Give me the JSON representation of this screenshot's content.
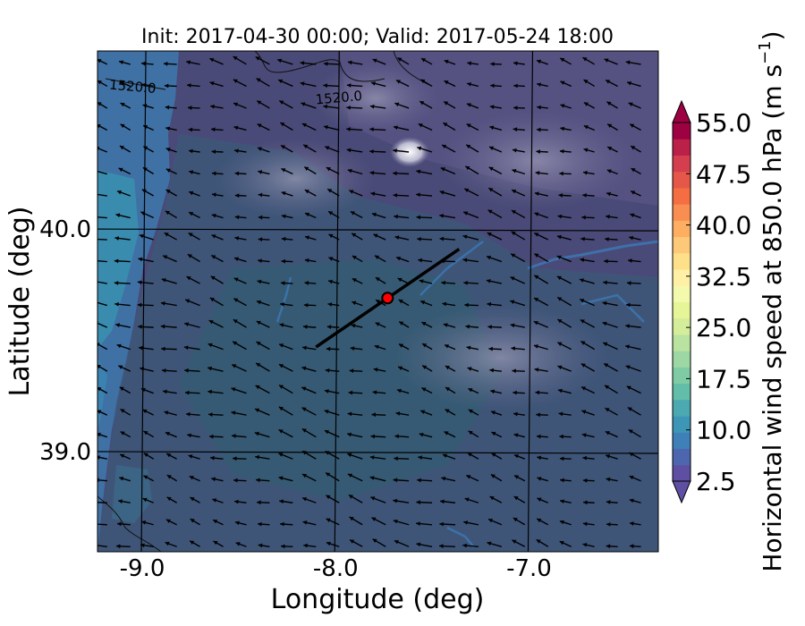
{
  "chart_data": {
    "type": "heatmap",
    "title": "Init: 2017-04-30 00:00; Valid: 2017-05-24 18:00",
    "xlabel": "Longitude (deg)",
    "ylabel": "Latitude (deg)",
    "xlim": [
      -9.25,
      -6.35
    ],
    "ylim": [
      38.55,
      40.8
    ],
    "grid": true,
    "x_ticks": [
      {
        "value": -9.0,
        "label": "-9.0"
      },
      {
        "value": -8.0,
        "label": "-8.0"
      },
      {
        "value": -7.0,
        "label": "-7.0"
      }
    ],
    "y_ticks": [
      {
        "value": 40.0,
        "label": "40.0"
      },
      {
        "value": 39.0,
        "label": "39.0"
      }
    ],
    "contour_labels": [
      {
        "text": "1520.0",
        "lon": -9.07,
        "lat": 40.62
      },
      {
        "text": "1520.0",
        "lon": -8.0,
        "lat": 40.57
      }
    ],
    "cross_section_line": {
      "start": [
        -8.12,
        39.47
      ],
      "end": [
        -7.38,
        39.91
      ]
    },
    "point": {
      "lon": -7.75,
      "lat": 39.69
    },
    "colorbar": {
      "label": "Horizontal wind speed at 850.0 hPa (m s",
      "unit_exponent": "−1",
      "unit_close": ")",
      "tick_labels": [
        "55.0",
        "47.5",
        "40.0",
        "32.5",
        "25.0",
        "17.5",
        "10.0",
        "2.5"
      ],
      "tick_values": [
        55.0,
        47.5,
        40.0,
        32.5,
        25.0,
        17.5,
        10.0,
        2.5
      ],
      "levels_min": 2.5,
      "levels_max": 55.0,
      "levels_step": 2.5,
      "extend": "both",
      "colors": [
        "#5e4fa2",
        "#4d66ad",
        "#3f80b9",
        "#3e96b6",
        "#4ba9b1",
        "#62bda9",
        "#7fcba4",
        "#9dd7a4",
        "#bae3a1",
        "#d4ed9b",
        "#e6f598",
        "#f4faad",
        "#fff0a6",
        "#fee08b",
        "#fdc877",
        "#fdae61",
        "#f98e52",
        "#f46d43",
        "#e55749",
        "#d53e4f",
        "#bb2048",
        "#9e0142"
      ],
      "extend_min_color": "#5e4fa2",
      "extend_max_color": "#9e0142"
    },
    "wind_field": {
      "description_units": "m s-1",
      "mean_u": -5.0,
      "mean_v": 1.5
    }
  }
}
